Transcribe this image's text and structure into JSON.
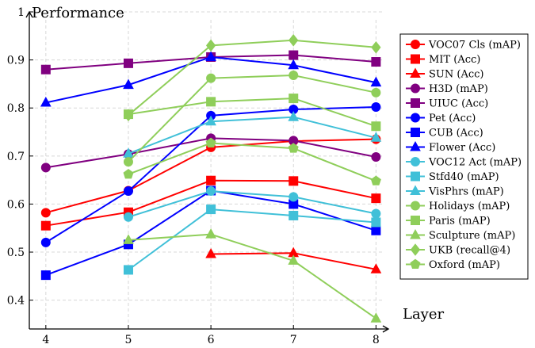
{
  "chart_data": {
    "type": "line",
    "xlabel": "Layer",
    "ylabel": "Performance",
    "x": [
      4,
      5,
      6,
      7,
      8
    ],
    "xticks": [
      "4",
      "5",
      "6",
      "7",
      "8"
    ],
    "yticks": [
      "0.4",
      "0.5",
      "0.6",
      "0.7",
      "0.8",
      "0.9",
      "1"
    ],
    "xlim": [
      3.8,
      8.15
    ],
    "ylim": [
      0.34,
      1.0
    ],
    "grid": true,
    "legend_position": "right",
    "series": [
      {
        "name": "VOC07 Cls (mAP)",
        "color": "#ff0000",
        "marker": "circle",
        "values": [
          0.582,
          0.628,
          0.718,
          0.731,
          0.735
        ]
      },
      {
        "name": "MIT (Acc)",
        "color": "#ff0000",
        "marker": "square",
        "values": [
          0.555,
          0.583,
          0.649,
          0.648,
          0.612
        ]
      },
      {
        "name": "SUN (Acc)",
        "color": "#ff0000",
        "marker": "triangle",
        "values": [
          null,
          null,
          0.496,
          0.498,
          0.464
        ]
      },
      {
        "name": "H3D (mAP)",
        "color": "#800080",
        "marker": "circle",
        "values": [
          0.676,
          0.704,
          0.737,
          0.732,
          0.698
        ]
      },
      {
        "name": "UIUC (Acc)",
        "color": "#800080",
        "marker": "square",
        "values": [
          0.88,
          0.893,
          0.906,
          0.91,
          0.896
        ]
      },
      {
        "name": "Pet (Acc)",
        "color": "#0000ff",
        "marker": "circle",
        "values": [
          0.52,
          0.627,
          0.784,
          0.797,
          0.802
        ]
      },
      {
        "name": "CUB (Acc)",
        "color": "#0000ff",
        "marker": "square",
        "values": [
          0.452,
          0.516,
          0.628,
          0.6,
          0.545
        ]
      },
      {
        "name": "Flower (Acc)",
        "color": "#0000ff",
        "marker": "triangle",
        "values": [
          0.811,
          0.848,
          0.906,
          0.889,
          0.853
        ]
      },
      {
        "name": "VOC12 Act (mAP)",
        "color": "#40c0d8",
        "marker": "circle",
        "values": [
          null,
          0.573,
          0.627,
          0.615,
          0.58
        ]
      },
      {
        "name": "Stfd40 (mAP)",
        "color": "#40c0d8",
        "marker": "square",
        "values": [
          null,
          0.463,
          0.589,
          0.576,
          0.562
        ]
      },
      {
        "name": "VisPhrs (mAP)",
        "color": "#40c0d8",
        "marker": "triangle",
        "values": [
          null,
          0.705,
          0.772,
          0.781,
          0.738
        ]
      },
      {
        "name": "Holidays (mAP)",
        "color": "#8fce5a",
        "marker": "circle",
        "values": [
          null,
          0.688,
          0.862,
          0.868,
          0.832
        ]
      },
      {
        "name": "Paris (mAP)",
        "color": "#8fce5a",
        "marker": "square",
        "values": [
          null,
          0.787,
          0.813,
          0.82,
          0.762
        ]
      },
      {
        "name": "Sculpture (mAP)",
        "color": "#8fce5a",
        "marker": "triangle",
        "values": [
          null,
          0.525,
          0.537,
          0.482,
          0.362
        ]
      },
      {
        "name": "UKB (recall@4)",
        "color": "#8fce5a",
        "marker": "diamond",
        "values": [
          null,
          0.785,
          0.93,
          0.941,
          0.926
        ]
      },
      {
        "name": "Oxford (mAP)",
        "color": "#8fce5a",
        "marker": "pentagon",
        "values": [
          null,
          0.662,
          0.727,
          0.716,
          0.648
        ]
      }
    ]
  }
}
